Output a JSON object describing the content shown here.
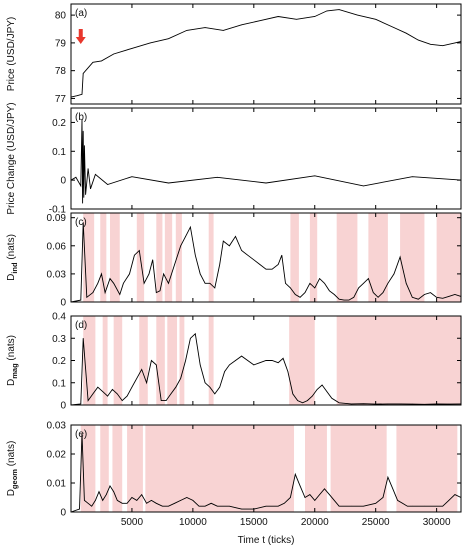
{
  "colors": {
    "shade": "#f8d3d3",
    "series": "#000000",
    "arrow": "#e8372c",
    "frame": "#000000"
  },
  "chart_data": [
    {
      "type": "line",
      "tag": "(a)",
      "ylabel": "Price (USD/JPY)",
      "ylim": [
        76.8,
        80.4
      ],
      "yticks": [
        77,
        78,
        79,
        80
      ],
      "xlim": [
        0,
        32000
      ],
      "annotation": "red down-arrow at t≈800 marking the price jump",
      "series": [
        {
          "x": [
            0,
            500,
            900,
            1000,
            1300,
            1800,
            2500,
            3500,
            5000,
            6500,
            8000,
            9500,
            11000,
            12500,
            14000,
            15500,
            17000,
            18500,
            20000,
            21000,
            22000,
            23500,
            25000,
            26500,
            27500,
            28500,
            29500,
            30500,
            31500,
            32000
          ],
          "values": [
            77.05,
            77.1,
            77.15,
            77.9,
            78.05,
            78.3,
            78.35,
            78.6,
            78.8,
            79.0,
            79.15,
            79.45,
            79.55,
            79.45,
            79.65,
            79.8,
            79.95,
            79.85,
            79.95,
            80.15,
            80.2,
            80.0,
            79.85,
            79.55,
            79.35,
            79.1,
            78.95,
            78.9,
            79.0,
            79.05
          ]
        }
      ]
    },
    {
      "type": "line",
      "tag": "(b)",
      "ylabel": "Price Change (USD/JPY)",
      "ylim": [
        -0.1,
        0.25
      ],
      "yticks": [
        -0.1,
        0,
        0.1,
        0.2
      ],
      "xlim": [
        0,
        32000
      ],
      "series": [
        {
          "x": [
            0,
            400,
            800,
            900,
            950,
            1000,
            1050,
            1100,
            1200,
            1400,
            1600,
            2000,
            3000,
            5000,
            8000,
            12000,
            16000,
            20000,
            24000,
            28000,
            32000
          ],
          "values": [
            0.0,
            0.01,
            -0.02,
            0.21,
            -0.08,
            0.17,
            -0.06,
            0.12,
            -0.05,
            0.04,
            -0.03,
            0.02,
            -0.015,
            0.012,
            -0.01,
            0.01,
            -0.01,
            0.015,
            -0.02,
            0.012,
            0.0
          ]
        }
      ]
    },
    {
      "type": "line",
      "tag": "(c)",
      "ylabel": "D",
      "ylabel_sub": "ind",
      "ylabel_unit": " (nats)",
      "ylim": [
        0,
        0.095
      ],
      "yticks": [
        0,
        0.03,
        0.06,
        0.09
      ],
      "xlim": [
        0,
        32000
      ],
      "shaded": [
        [
          1000,
          1900
        ],
        [
          2400,
          2900
        ],
        [
          3200,
          4000
        ],
        [
          5400,
          6000
        ],
        [
          7000,
          7500
        ],
        [
          7700,
          8300
        ],
        [
          8600,
          9100
        ],
        [
          11300,
          11700
        ],
        [
          18000,
          18700
        ],
        [
          19600,
          20200
        ],
        [
          21800,
          23500
        ],
        [
          24400,
          26000
        ],
        [
          27000,
          29000
        ],
        [
          30000,
          32000
        ]
      ],
      "series": [
        {
          "x": [
            0,
            800,
            1000,
            1300,
            1800,
            2200,
            2500,
            2800,
            3200,
            3500,
            4000,
            4300,
            4800,
            5200,
            5600,
            6000,
            6400,
            6700,
            7000,
            7300,
            7600,
            8000,
            8500,
            9000,
            9400,
            9800,
            10200,
            10600,
            11000,
            11400,
            11800,
            12200,
            12500,
            13000,
            13500,
            14000,
            14500,
            15000,
            15500,
            16000,
            16500,
            17000,
            17300,
            17600,
            18000,
            18400,
            18800,
            19200,
            19600,
            20000,
            20400,
            20800,
            21200,
            21600,
            22000,
            22400,
            22800,
            23200,
            23600,
            24000,
            24400,
            24800,
            25200,
            25600,
            26000,
            26500,
            27000,
            27500,
            28000,
            28500,
            29000,
            29500,
            30000,
            30500,
            31000,
            31500,
            32000
          ],
          "values": [
            0.0,
            0.002,
            0.085,
            0.005,
            0.01,
            0.02,
            0.03,
            0.01,
            0.025,
            0.02,
            0.008,
            0.02,
            0.03,
            0.05,
            0.055,
            0.02,
            0.03,
            0.045,
            0.01,
            0.012,
            0.03,
            0.02,
            0.04,
            0.06,
            0.07,
            0.08,
            0.05,
            0.03,
            0.02,
            0.02,
            0.015,
            0.04,
            0.065,
            0.06,
            0.07,
            0.055,
            0.05,
            0.045,
            0.04,
            0.035,
            0.035,
            0.04,
            0.05,
            0.02,
            0.015,
            0.008,
            0.005,
            0.01,
            0.02,
            0.015,
            0.025,
            0.02,
            0.012,
            0.008,
            0.003,
            0.002,
            0.002,
            0.005,
            0.015,
            0.02,
            0.025,
            0.01,
            0.005,
            0.01,
            0.02,
            0.03,
            0.048,
            0.02,
            0.005,
            0.003,
            0.008,
            0.01,
            0.005,
            0.004,
            0.006,
            0.008,
            0.006
          ]
        }
      ]
    },
    {
      "type": "line",
      "tag": "(d)",
      "ylabel": "D",
      "ylabel_sub": "mag",
      "ylabel_unit": " (nats)",
      "ylim": [
        0,
        0.4
      ],
      "yticks": [
        0,
        0.1,
        0.2,
        0.3,
        0.4
      ],
      "xlim": [
        0,
        32000
      ],
      "shaded": [
        [
          1000,
          2000
        ],
        [
          2600,
          3000
        ],
        [
          3500,
          4200
        ],
        [
          5600,
          6300
        ],
        [
          7000,
          7700
        ],
        [
          7900,
          8700
        ],
        [
          8900,
          9300
        ],
        [
          11300,
          11700
        ],
        [
          17900,
          20000
        ],
        [
          21800,
          32000
        ]
      ],
      "series": [
        {
          "x": [
            0,
            800,
            1000,
            1400,
            1800,
            2200,
            2600,
            3000,
            3400,
            3800,
            4200,
            4600,
            5000,
            5400,
            5800,
            6200,
            6600,
            7000,
            7400,
            7800,
            8200,
            8600,
            9000,
            9400,
            9800,
            10200,
            10600,
            11000,
            11400,
            11800,
            12200,
            12600,
            13000,
            13500,
            14000,
            14500,
            15000,
            15500,
            16000,
            16500,
            17000,
            17400,
            17800,
            18200,
            18600,
            19000,
            19400,
            19800,
            20200,
            20600,
            21000,
            21400,
            22000,
            23000,
            24000,
            25000,
            26000,
            27000,
            28000,
            29000,
            30000,
            31000,
            32000
          ],
          "values": [
            0.0,
            0.005,
            0.3,
            0.02,
            0.05,
            0.08,
            0.06,
            0.04,
            0.07,
            0.05,
            0.02,
            0.04,
            0.08,
            0.12,
            0.16,
            0.1,
            0.2,
            0.18,
            0.02,
            0.02,
            0.05,
            0.08,
            0.12,
            0.2,
            0.3,
            0.32,
            0.18,
            0.1,
            0.08,
            0.05,
            0.08,
            0.15,
            0.18,
            0.2,
            0.22,
            0.2,
            0.18,
            0.19,
            0.2,
            0.2,
            0.19,
            0.21,
            0.15,
            0.05,
            0.02,
            0.01,
            0.02,
            0.04,
            0.07,
            0.09,
            0.06,
            0.03,
            0.01,
            0.005,
            0.006,
            0.004,
            0.005,
            0.005,
            0.004,
            0.003,
            0.005,
            0.004,
            0.005
          ]
        }
      ]
    },
    {
      "type": "line",
      "tag": "(e)",
      "ylabel": "D",
      "ylabel_sub": "geom",
      "ylabel_unit": " (nats)",
      "ylim": [
        0,
        0.03
      ],
      "yticks": [
        0,
        0.01,
        0.02,
        0.03
      ],
      "xlim": [
        0,
        32000
      ],
      "xticks": [
        5000,
        10000,
        15000,
        20000,
        25000,
        30000
      ],
      "xlabel": "Time t (ticks)",
      "shaded": [
        [
          800,
          2000
        ],
        [
          2400,
          3100
        ],
        [
          3400,
          4200
        ],
        [
          4600,
          5900
        ],
        [
          6100,
          18300
        ],
        [
          19200,
          21000
        ],
        [
          21300,
          25900
        ],
        [
          26700,
          31700
        ]
      ],
      "series": [
        {
          "x": [
            0,
            700,
            900,
            1100,
            1400,
            1700,
            2000,
            2300,
            2600,
            2900,
            3200,
            3500,
            3800,
            4200,
            4600,
            5000,
            5400,
            5800,
            6200,
            6600,
            7000,
            7500,
            8000,
            8500,
            9000,
            9500,
            10000,
            10500,
            11000,
            11500,
            12000,
            13000,
            14000,
            15000,
            16000,
            17000,
            17500,
            18000,
            18400,
            18800,
            19200,
            19600,
            20000,
            20400,
            20800,
            21200,
            21600,
            22000,
            23000,
            24000,
            25000,
            25600,
            26000,
            26400,
            26800,
            27200,
            27600,
            28000,
            29000,
            30000,
            30500,
            31000,
            31500,
            32000
          ],
          "values": [
            0.0,
            0.001,
            0.027,
            0.004,
            0.003,
            0.002,
            0.004,
            0.007,
            0.004,
            0.006,
            0.009,
            0.007,
            0.004,
            0.003,
            0.003,
            0.005,
            0.004,
            0.006,
            0.003,
            0.004,
            0.003,
            0.002,
            0.002,
            0.003,
            0.004,
            0.005,
            0.004,
            0.002,
            0.002,
            0.003,
            0.002,
            0.002,
            0.001,
            0.001,
            0.002,
            0.002,
            0.003,
            0.005,
            0.013,
            0.009,
            0.005,
            0.006,
            0.004,
            0.006,
            0.008,
            0.006,
            0.004,
            0.002,
            0.002,
            0.002,
            0.003,
            0.005,
            0.012,
            0.008,
            0.004,
            0.003,
            0.002,
            0.002,
            0.002,
            0.002,
            0.002,
            0.004,
            0.006,
            0.005
          ]
        }
      ]
    }
  ]
}
